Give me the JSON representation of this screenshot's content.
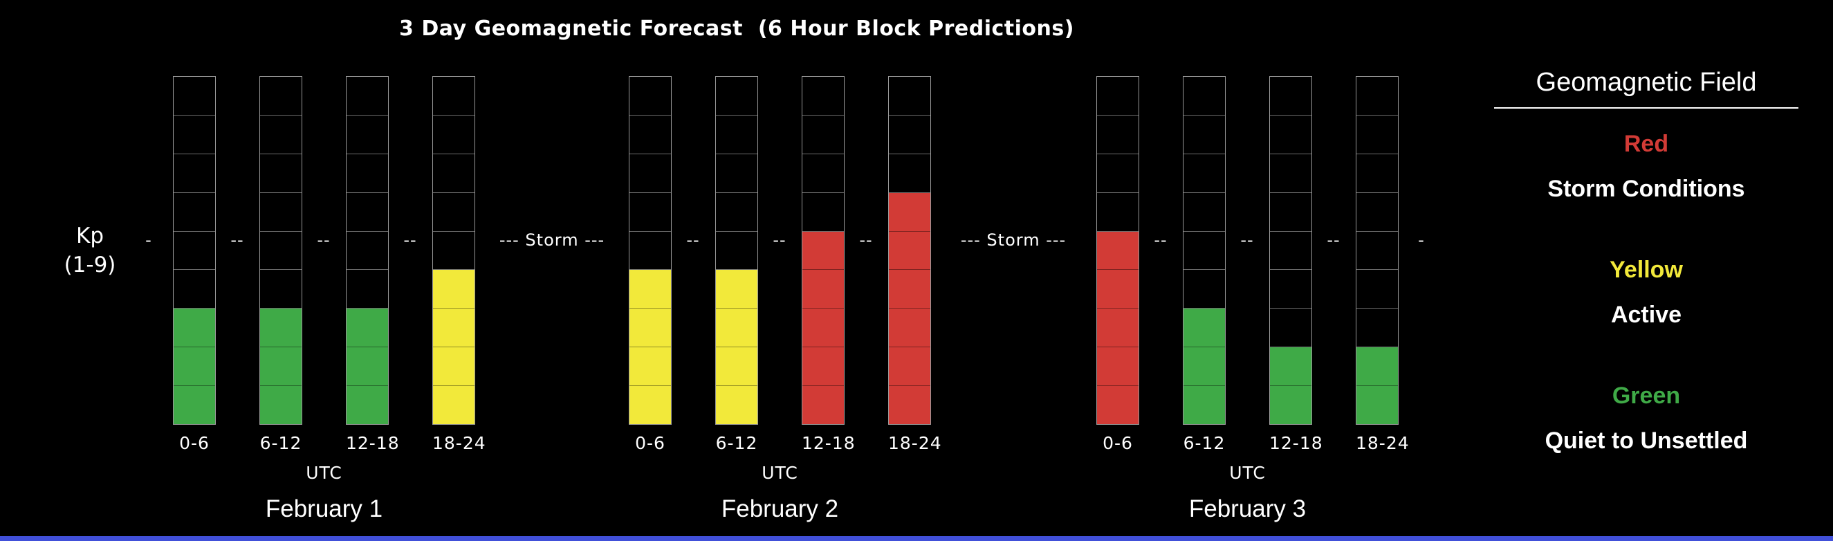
{
  "title": "3 Day Geomagnetic Forecast  (6 Hour Block Predictions)",
  "y_axis": {
    "line1": "Kp",
    "line2": "(1-9)"
  },
  "utc_label": "UTC",
  "threshold": {
    "storm_label": "--- Storm ---",
    "dash_short": "-",
    "dash_long": "--",
    "kp_level": 5
  },
  "colors": {
    "background": "#000000",
    "green": "#3faa47",
    "yellow": "#f2e93a",
    "red": "#d23b36",
    "grid_line": "#6e6e6e",
    "column_border": "#9a9a9a",
    "text": "#ffffff",
    "bottom_bar": "#4150d9"
  },
  "legend": {
    "title": "Geomagnetic Field",
    "entries": [
      {
        "name": "Red",
        "description": "Storm Conditions",
        "color_key": "red"
      },
      {
        "name": "Yellow",
        "description": "Active",
        "color_key": "yellow"
      },
      {
        "name": "Green",
        "description": "Quiet to Unsettled",
        "color_key": "green"
      }
    ]
  },
  "chart_data": {
    "type": "bar",
    "title": "3 Day Geomagnetic Forecast (6 Hour Block Predictions)",
    "ylabel": "Kp (1-9)",
    "ylim": [
      0,
      9
    ],
    "cells_per_bar": 9,
    "storm_threshold_kp": 5,
    "grid": true,
    "legend_position": "right",
    "x_block_labels": [
      "0-6",
      "6-12",
      "12-18",
      "18-24"
    ],
    "days": [
      {
        "date": "February 1",
        "kp": [
          3,
          3,
          3,
          4
        ],
        "levels": [
          "green",
          "green",
          "green",
          "yellow"
        ]
      },
      {
        "date": "February 2",
        "kp": [
          4,
          4,
          5,
          6
        ],
        "levels": [
          "yellow",
          "yellow",
          "red",
          "red"
        ]
      },
      {
        "date": "February 3",
        "kp": [
          5,
          3,
          2,
          2
        ],
        "levels": [
          "red",
          "green",
          "green",
          "green"
        ]
      }
    ]
  }
}
